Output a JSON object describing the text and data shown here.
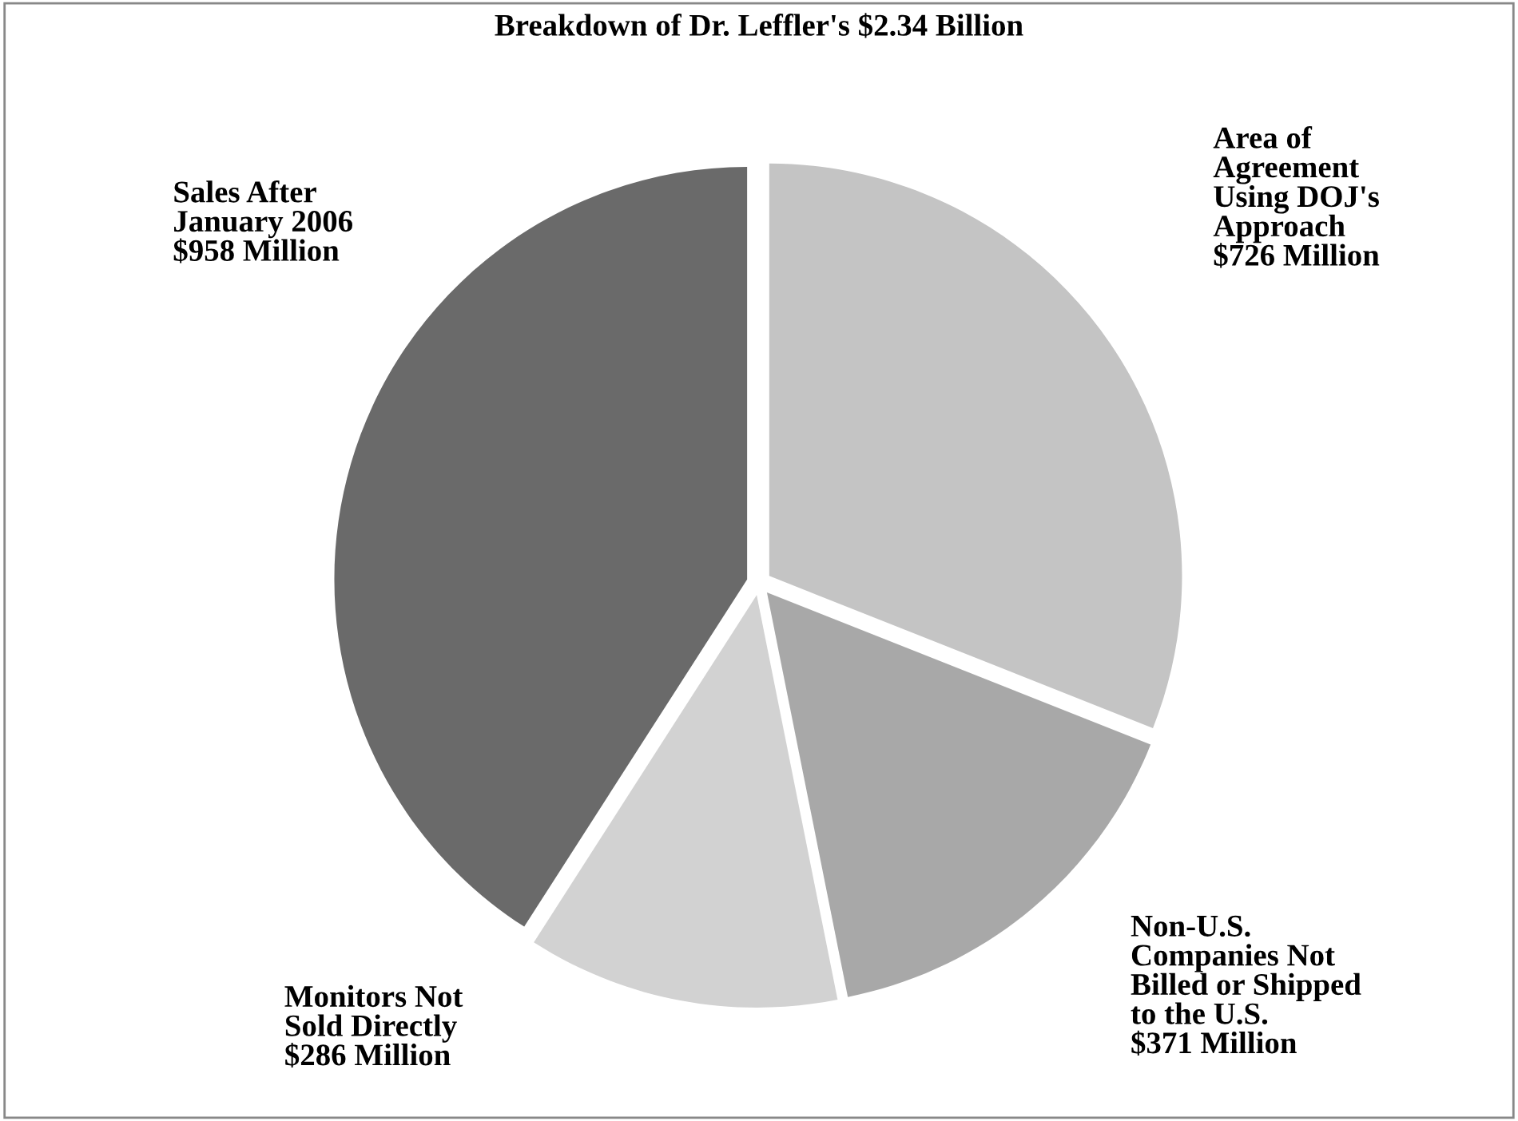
{
  "chart_data": {
    "type": "pie",
    "title": "Breakdown of Dr. Leffler's $2.34 Billion",
    "categories": [
      "Area of\nAgreement\nUsing DOJ's\nApproach",
      "Non-U.S.\nCompanies Not\nBilled or Shipped\nto the U.S.",
      "Monitors Not\nSold Directly",
      "Sales After\nJanuary 2006"
    ],
    "values": [
      726,
      371,
      286,
      958
    ],
    "value_labels": [
      "$726 Million",
      "$371 Million",
      "$286 Million",
      "$958 Million"
    ],
    "colors": [
      "#c4c4c4",
      "#a8a8a8",
      "#d2d2d2",
      "#6a6a6a"
    ]
  }
}
